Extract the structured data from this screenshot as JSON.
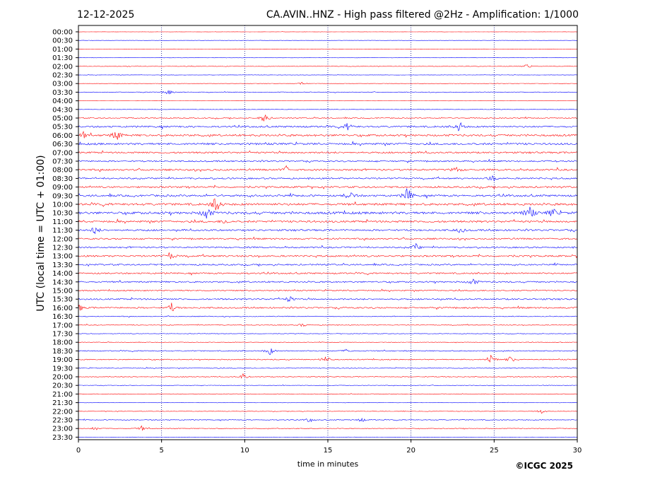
{
  "header": {
    "date": "12-12-2025",
    "station": "CA.AVIN..HNZ - High pass filtered @2Hz - Amplification: 1/1000"
  },
  "footer": {
    "copyright": "©ICGC 2025"
  },
  "colors": {
    "trace_a": "#ff0000",
    "trace_b": "#0000ff",
    "grid": "#000080",
    "axis": "#000000"
  },
  "chart_data": {
    "type": "line",
    "title": "CA.AVIN..HNZ - High pass filtered @2Hz - Amplification: 1/1000",
    "xlabel": "time in minutes",
    "ylabel": "UTC (local time = UTC + 01:00)",
    "xlim": [
      0,
      30
    ],
    "x_ticks": [
      0,
      5,
      10,
      15,
      20,
      25,
      30
    ],
    "x_gridlines": [
      5,
      10,
      15,
      20,
      25
    ],
    "grid": "vertical dotted",
    "row_labels": [
      "00:00",
      "00:30",
      "01:00",
      "01:30",
      "02:00",
      "02:30",
      "03:00",
      "03:30",
      "04:00",
      "04:30",
      "05:00",
      "05:30",
      "06:00",
      "06:30",
      "07:00",
      "07:30",
      "08:00",
      "08:30",
      "09:00",
      "09:30",
      "10:00",
      "10:30",
      "11:00",
      "11:30",
      "12:00",
      "12:30",
      "13:00",
      "13:30",
      "14:00",
      "14:30",
      "15:00",
      "15:30",
      "16:00",
      "16:30",
      "17:00",
      "17:30",
      "18:00",
      "18:30",
      "19:00",
      "19:30",
      "20:00",
      "20:30",
      "21:00",
      "21:30",
      "22:00",
      "22:30",
      "23:00",
      "23:30"
    ],
    "row_colors": [
      "red",
      "blue",
      "red",
      "blue",
      "red",
      "blue",
      "red",
      "blue",
      "red",
      "blue",
      "red",
      "blue",
      "red",
      "blue",
      "red",
      "blue",
      "red",
      "blue",
      "red",
      "blue",
      "red",
      "blue",
      "red",
      "blue",
      "red",
      "blue",
      "red",
      "blue",
      "red",
      "blue",
      "red",
      "blue",
      "red",
      "blue",
      "red",
      "blue",
      "red",
      "blue",
      "red",
      "blue",
      "red",
      "blue",
      "red",
      "blue",
      "red",
      "blue",
      "red",
      "blue"
    ],
    "row_noise_level": [
      0.1,
      0.1,
      0.1,
      0.15,
      0.2,
      0.15,
      0.15,
      0.25,
      0.1,
      0.15,
      0.4,
      0.7,
      0.8,
      0.8,
      0.7,
      0.6,
      0.7,
      0.6,
      0.7,
      0.8,
      0.9,
      1.0,
      0.8,
      0.7,
      0.6,
      0.6,
      0.7,
      0.6,
      0.6,
      0.6,
      0.5,
      0.6,
      0.6,
      0.3,
      0.3,
      0.2,
      0.2,
      0.4,
      0.4,
      0.3,
      0.3,
      0.2,
      0.2,
      0.15,
      0.2,
      0.3,
      0.3,
      0.1
    ],
    "events": [
      {
        "row": 4,
        "minute": 27.0,
        "amp": 0.35
      },
      {
        "row": 6,
        "minute": 13.5,
        "amp": 0.25
      },
      {
        "row": 7,
        "minute": 5.4,
        "amp": 0.5
      },
      {
        "row": 10,
        "minute": 11.2,
        "amp": 0.8
      },
      {
        "row": 11,
        "minute": 22.9,
        "amp": 0.9
      },
      {
        "row": 11,
        "minute": 16.2,
        "amp": 0.6
      },
      {
        "row": 12,
        "minute": 2.3,
        "amp": 0.9
      },
      {
        "row": 12,
        "minute": 0.3,
        "amp": 0.5
      },
      {
        "row": 16,
        "minute": 12.5,
        "amp": 0.6
      },
      {
        "row": 16,
        "minute": 22.7,
        "amp": 0.5
      },
      {
        "row": 17,
        "minute": 24.9,
        "amp": 0.6
      },
      {
        "row": 19,
        "minute": 16.3,
        "amp": 0.9
      },
      {
        "row": 19,
        "minute": 19.8,
        "amp": 1.3
      },
      {
        "row": 20,
        "minute": 8.3,
        "amp": 1.5
      },
      {
        "row": 21,
        "minute": 7.7,
        "amp": 1.3
      },
      {
        "row": 21,
        "minute": 27.1,
        "amp": 1.5
      },
      {
        "row": 21,
        "minute": 28.5,
        "amp": 0.8
      },
      {
        "row": 22,
        "minute": 8.8,
        "amp": 0.4
      },
      {
        "row": 23,
        "minute": 1.0,
        "amp": 0.7
      },
      {
        "row": 23,
        "minute": 23.0,
        "amp": 0.5
      },
      {
        "row": 25,
        "minute": 20.3,
        "amp": 0.6
      },
      {
        "row": 26,
        "minute": 5.5,
        "amp": 0.6
      },
      {
        "row": 29,
        "minute": 23.7,
        "amp": 0.7
      },
      {
        "row": 31,
        "minute": 12.7,
        "amp": 0.5
      },
      {
        "row": 32,
        "minute": 5.6,
        "amp": 0.7
      },
      {
        "row": 32,
        "minute": 0.1,
        "amp": 0.5
      },
      {
        "row": 34,
        "minute": 13.5,
        "amp": 0.3
      },
      {
        "row": 37,
        "minute": 11.5,
        "amp": 0.7
      },
      {
        "row": 37,
        "minute": 16.2,
        "amp": 0.4
      },
      {
        "row": 38,
        "minute": 14.9,
        "amp": 0.7
      },
      {
        "row": 38,
        "minute": 24.8,
        "amp": 0.9
      },
      {
        "row": 38,
        "minute": 26.0,
        "amp": 0.5
      },
      {
        "row": 40,
        "minute": 9.9,
        "amp": 0.5
      },
      {
        "row": 44,
        "minute": 27.8,
        "amp": 0.4
      },
      {
        "row": 45,
        "minute": 13.9,
        "amp": 0.4
      },
      {
        "row": 45,
        "minute": 17.0,
        "amp": 0.4
      },
      {
        "row": 46,
        "minute": 1.0,
        "amp": 0.3
      },
      {
        "row": 46,
        "minute": 3.8,
        "amp": 0.4
      }
    ]
  }
}
